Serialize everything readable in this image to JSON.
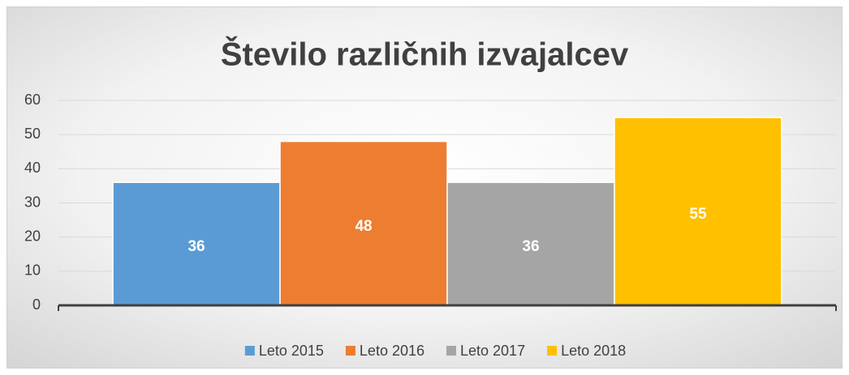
{
  "chart_data": {
    "type": "bar",
    "title": "Število različnih izvajalcev",
    "categories": [
      null
    ],
    "series": [
      {
        "name": "Leto 2015",
        "color": "#5b9bd5",
        "values": [
          36
        ]
      },
      {
        "name": "Leto 2016",
        "color": "#ed7d31",
        "values": [
          48
        ]
      },
      {
        "name": "Leto 2017",
        "color": "#a5a5a5",
        "values": [
          36
        ]
      },
      {
        "name": "Leto 2018",
        "color": "#ffc000",
        "values": [
          55
        ]
      }
    ],
    "ylim": [
      0,
      60
    ],
    "yticks": [
      0,
      10,
      20,
      30,
      40,
      50,
      60
    ],
    "grid": true,
    "legend": "bottom",
    "data_labels": true
  }
}
